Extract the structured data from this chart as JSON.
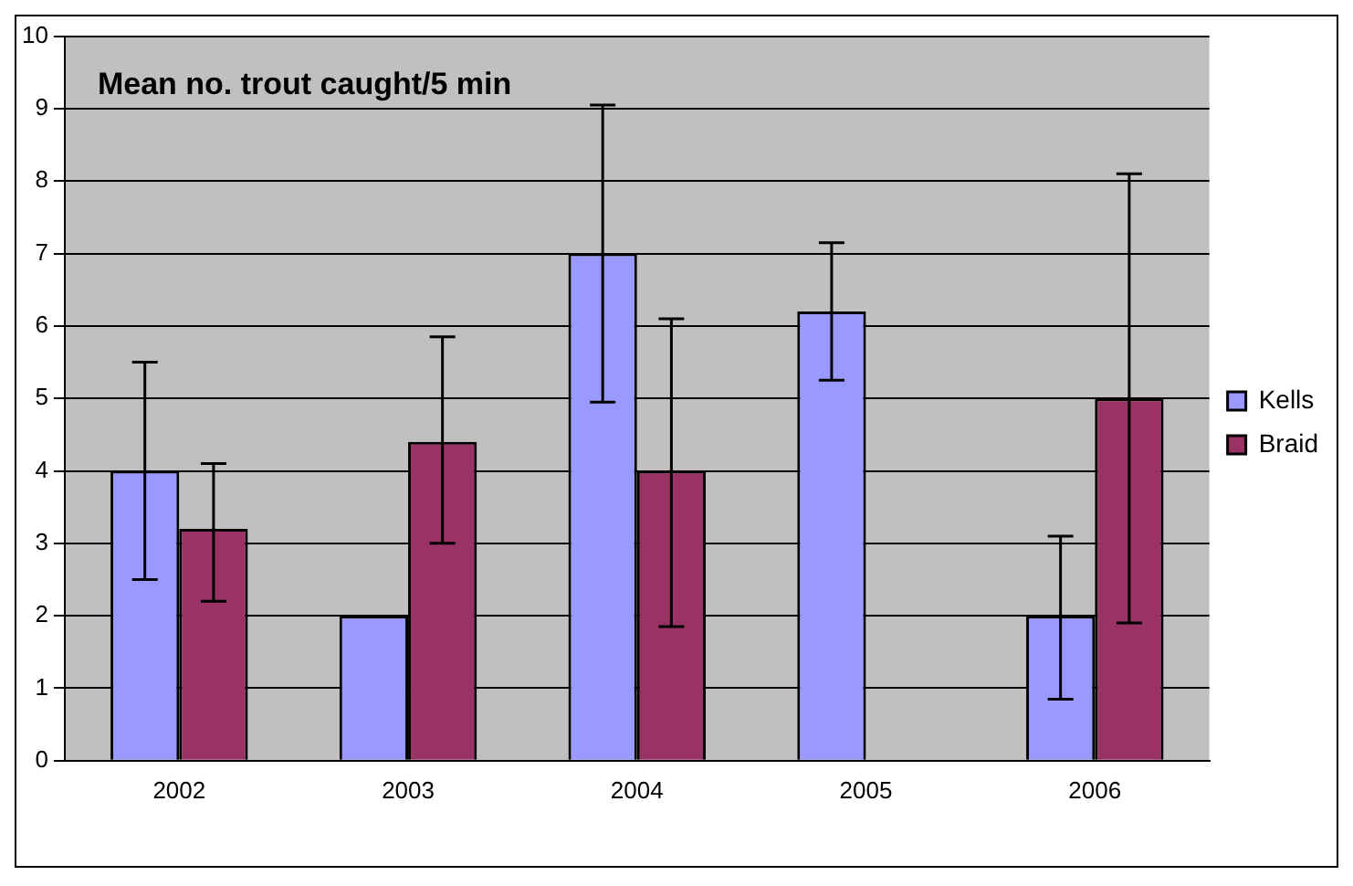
{
  "chart_data": {
    "type": "bar",
    "title": "Mean no. trout caught/5 min",
    "categories": [
      "2002",
      "2003",
      "2004",
      "2005",
      "2006"
    ],
    "series": [
      {
        "name": "Kells",
        "color": "#9999ff",
        "values": [
          4,
          2,
          7,
          6.2,
          2
        ],
        "errors": [
          [
            2.5,
            5.5
          ],
          null,
          [
            4.95,
            9.05
          ],
          [
            5.25,
            7.15
          ],
          [
            0.85,
            3.1
          ]
        ]
      },
      {
        "name": "Braid",
        "color": "#993366",
        "values": [
          3.2,
          4.4,
          4,
          0,
          5
        ],
        "errors": [
          [
            2.2,
            4.1
          ],
          [
            3.0,
            5.85
          ],
          [
            1.85,
            6.1
          ],
          null,
          [
            1.9,
            8.1
          ]
        ]
      }
    ],
    "ylim": [
      0,
      10
    ],
    "yticks": [
      0,
      1,
      2,
      3,
      4,
      5,
      6,
      7,
      8,
      9,
      10
    ],
    "grid": "y",
    "legend": "right"
  }
}
